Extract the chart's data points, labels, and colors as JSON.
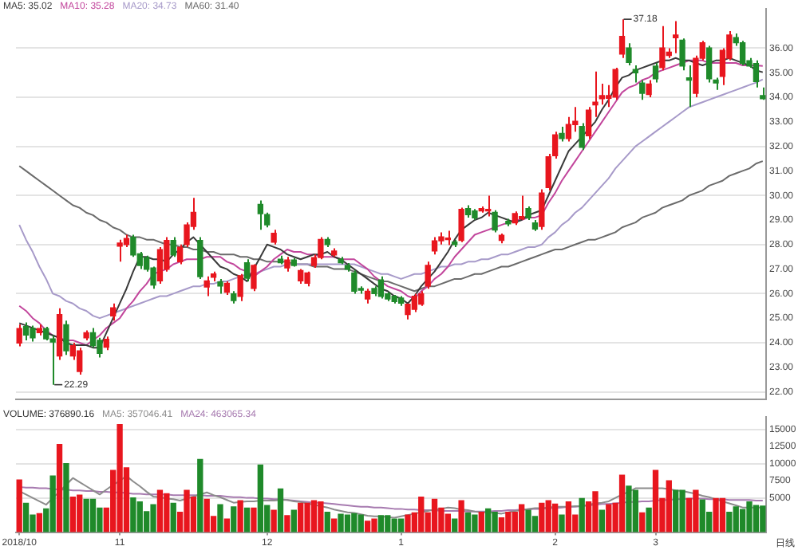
{
  "chart_data": [
    {
      "type": "candlestick",
      "categories": [
        null,
        null,
        null,
        null,
        null,
        null,
        null,
        null,
        null,
        null,
        null,
        null,
        null,
        null,
        null,
        null,
        null,
        null,
        null,
        null,
        null,
        null,
        null,
        null,
        null,
        null,
        null,
        null,
        null,
        null,
        null,
        null,
        null,
        null,
        null,
        null,
        null,
        null,
        null,
        null,
        null,
        null,
        null,
        null,
        null,
        null,
        null,
        null,
        null,
        null,
        null,
        null,
        null,
        null,
        null,
        null,
        null,
        null,
        null,
        null,
        null,
        null,
        null,
        null,
        null,
        null,
        null,
        null,
        null,
        null,
        null,
        null,
        null,
        null,
        null,
        null,
        null,
        null,
        null,
        null,
        null,
        null,
        null,
        null,
        null,
        null,
        null,
        null,
        null,
        null,
        null,
        null,
        null,
        null,
        null,
        null,
        null,
        null,
        null,
        null,
        null,
        null,
        null,
        null,
        null,
        null,
        null,
        null,
        null,
        null,
        null,
        null
      ],
      "ohlc": [
        [
          23.99,
          24.75,
          23.85,
          24.58
        ],
        [
          24.66,
          24.83,
          24.1,
          24.31
        ],
        [
          24.58,
          24.7,
          24.05,
          24.2
        ],
        [
          24.41,
          24.75,
          24.3,
          24.58
        ],
        [
          24.58,
          24.65,
          24.1,
          24.16
        ],
        [
          24.16,
          24.3,
          22.29,
          24.03
        ],
        [
          23.46,
          25.4,
          23.3,
          25.15
        ],
        [
          24.73,
          24.9,
          23.5,
          23.67
        ],
        [
          23.46,
          24.0,
          23.3,
          23.88
        ],
        [
          22.83,
          23.8,
          22.7,
          23.67
        ],
        [
          24.2,
          24.5,
          24.1,
          24.41
        ],
        [
          24.41,
          24.6,
          23.8,
          23.88
        ],
        [
          24.1,
          24.2,
          23.4,
          23.57
        ],
        [
          23.82,
          24.25,
          23.7,
          24.14
        ],
        [
          25.09,
          25.6,
          24.9,
          25.42
        ],
        [
          27.93,
          28.2,
          27.3,
          28.06
        ],
        [
          28.0,
          28.4,
          27.9,
          28.25
        ],
        [
          28.3,
          28.4,
          27.5,
          27.58
        ],
        [
          27.62,
          27.7,
          27.0,
          27.15
        ],
        [
          27.47,
          27.55,
          26.9,
          26.99
        ],
        [
          27.05,
          27.1,
          26.2,
          26.35
        ],
        [
          26.52,
          27.9,
          26.4,
          27.79
        ],
        [
          26.99,
          28.3,
          26.9,
          28.17
        ],
        [
          28.17,
          28.3,
          27.5,
          27.58
        ],
        [
          27.3,
          28.0,
          27.2,
          27.89
        ],
        [
          28.0,
          28.9,
          27.9,
          28.8
        ],
        [
          28.74,
          29.9,
          28.6,
          29.31
        ],
        [
          28.17,
          28.3,
          26.6,
          26.69
        ],
        [
          26.27,
          26.7,
          25.9,
          26.52
        ],
        [
          26.67,
          26.9,
          26.5,
          26.8
        ],
        [
          26.48,
          26.6,
          26.0,
          26.31
        ],
        [
          26.06,
          26.5,
          25.95,
          26.42
        ],
        [
          25.99,
          26.1,
          25.6,
          25.72
        ],
        [
          25.89,
          26.8,
          25.7,
          26.73
        ],
        [
          27.26,
          27.4,
          26.5,
          26.63
        ],
        [
          26.21,
          27.2,
          26.1,
          27.15
        ],
        [
          29.64,
          29.8,
          28.6,
          29.26
        ],
        [
          29.22,
          29.3,
          28.7,
          28.8
        ],
        [
          28.1,
          28.6,
          28.0,
          28.46
        ],
        [
          27.4,
          27.55,
          27.2,
          27.26
        ],
        [
          27.05,
          27.5,
          26.9,
          27.37
        ],
        [
          27.37,
          27.45,
          27.1,
          27.15
        ],
        [
          26.52,
          27.0,
          26.4,
          26.94
        ],
        [
          26.42,
          26.9,
          26.3,
          26.84
        ],
        [
          27.15,
          27.6,
          27.05,
          27.47
        ],
        [
          27.47,
          28.3,
          27.4,
          28.21
        ],
        [
          28.21,
          28.3,
          27.9,
          28.0
        ],
        [
          27.58,
          27.85,
          27.5,
          27.74
        ],
        [
          27.4,
          27.5,
          27.2,
          27.26
        ],
        [
          27.15,
          27.25,
          26.9,
          26.99
        ],
        [
          26.84,
          26.95,
          26.0,
          26.1
        ],
        [
          26.21,
          26.3,
          26.0,
          26.14
        ],
        [
          25.78,
          26.2,
          25.6,
          26.1
        ],
        [
          26.21,
          26.3,
          25.9,
          26.0
        ],
        [
          26.56,
          26.7,
          25.8,
          25.89
        ],
        [
          25.99,
          26.05,
          25.7,
          25.78
        ],
        [
          25.89,
          25.95,
          25.6,
          25.68
        ],
        [
          25.82,
          25.9,
          25.5,
          25.61
        ],
        [
          25.15,
          25.6,
          24.95,
          25.57
        ],
        [
          25.36,
          26.0,
          25.25,
          25.89
        ],
        [
          25.57,
          26.1,
          25.5,
          25.99
        ],
        [
          26.31,
          27.3,
          26.2,
          27.15
        ],
        [
          27.74,
          28.3,
          27.6,
          28.15
        ],
        [
          28.15,
          28.5,
          28.0,
          28.31
        ],
        [
          28.2,
          28.56,
          27.98,
          28.25
        ],
        [
          28.1,
          28.2,
          27.9,
          28.0
        ],
        [
          28.17,
          29.5,
          28.1,
          29.43
        ],
        [
          29.47,
          29.6,
          29.1,
          29.22
        ],
        [
          29.37,
          29.45,
          29.0,
          29.09
        ],
        [
          29.37,
          29.55,
          29.3,
          29.47
        ],
        [
          29.37,
          29.99,
          29.15,
          29.43
        ],
        [
          29.31,
          29.4,
          28.5,
          28.59
        ],
        [
          28.17,
          28.45,
          28.05,
          28.38
        ],
        [
          28.95,
          29.05,
          28.75,
          28.84
        ],
        [
          28.88,
          29.35,
          28.8,
          29.26
        ],
        [
          29.05,
          29.99,
          29.0,
          29.14
        ],
        [
          29.47,
          29.55,
          29.0,
          29.09
        ],
        [
          28.88,
          29.0,
          28.55,
          28.63
        ],
        [
          28.74,
          30.25,
          28.6,
          30.1
        ],
        [
          30.32,
          31.7,
          30.2,
          31.58
        ],
        [
          31.62,
          32.6,
          31.5,
          32.47
        ],
        [
          32.53,
          32.8,
          32.2,
          32.32
        ],
        [
          32.32,
          33.2,
          32.2,
          32.89
        ],
        [
          32.89,
          33.6,
          32.6,
          33.02
        ],
        [
          32.81,
          32.95,
          31.85,
          31.96
        ],
        [
          32.43,
          33.6,
          32.3,
          33.48
        ],
        [
          33.69,
          35.05,
          33.2,
          33.8
        ],
        [
          33.94,
          34.55,
          33.7,
          34.07
        ],
        [
          33.96,
          34.5,
          33.6,
          34.07
        ],
        [
          34.01,
          35.2,
          33.9,
          35.13
        ],
        [
          35.76,
          37.18,
          35.6,
          36.48
        ],
        [
          36.01,
          36.2,
          35.3,
          35.42
        ],
        [
          35.13,
          35.3,
          34.6,
          35.0
        ],
        [
          34.58,
          34.7,
          33.9,
          34.16
        ],
        [
          34.11,
          34.7,
          34.0,
          34.54
        ],
        [
          35.27,
          35.4,
          34.6,
          34.75
        ],
        [
          35.21,
          36.9,
          35.1,
          36.01
        ],
        [
          35.7,
          36.0,
          35.6,
          35.84
        ],
        [
          36.43,
          37.1,
          35.8,
          36.54
        ],
        [
          36.33,
          36.4,
          35.1,
          35.27
        ],
        [
          34.79,
          35.3,
          33.6,
          34.7
        ],
        [
          34.16,
          35.7,
          34.0,
          35.59
        ],
        [
          35.59,
          36.3,
          35.5,
          36.22
        ],
        [
          36.01,
          36.1,
          34.6,
          34.75
        ],
        [
          34.7,
          34.8,
          34.3,
          34.58
        ],
        [
          34.85,
          36.0,
          34.5,
          35.91
        ],
        [
          35.59,
          36.7,
          35.5,
          36.54
        ],
        [
          36.43,
          36.6,
          36.1,
          36.22
        ],
        [
          36.22,
          36.3,
          35.3,
          35.38
        ],
        [
          35.49,
          35.6,
          35.2,
          35.27
        ],
        [
          35.38,
          35.5,
          34.4,
          34.64
        ],
        [
          34.07,
          34.4,
          33.9,
          33.94
        ]
      ],
      "colors": [
        "#e8161e",
        "#1f8a2a",
        "#1f8a2a",
        "#e8161e",
        "#1f8a2a",
        "#1f8a2a",
        "#e8161e",
        "#1f8a2a",
        "#e8161e",
        "#e8161e",
        "#e8161e",
        "#1f8a2a",
        "#1f8a2a",
        "#e8161e",
        "#e8161e",
        "#e8161e",
        "#e8161e",
        "#1f8a2a",
        "#1f8a2a",
        "#1f8a2a",
        "#1f8a2a",
        "#e8161e",
        "#e8161e",
        "#1f8a2a",
        "#e8161e",
        "#e8161e",
        "#e8161e",
        "#1f8a2a",
        "#e8161e",
        "#e8161e",
        "#1f8a2a",
        "#e8161e",
        "#1f8a2a",
        "#e8161e",
        "#1f8a2a",
        "#e8161e",
        "#1f8a2a",
        "#1f8a2a",
        "#e8161e",
        "#1f8a2a",
        "#e8161e",
        "#1f8a2a",
        "#e8161e",
        "#e8161e",
        "#e8161e",
        "#e8161e",
        "#1f8a2a",
        "#e8161e",
        "#1f8a2a",
        "#1f8a2a",
        "#1f8a2a",
        "#1f8a2a",
        "#e8161e",
        "#1f8a2a",
        "#1f8a2a",
        "#1f8a2a",
        "#1f8a2a",
        "#1f8a2a",
        "#e8161e",
        "#e8161e",
        "#e8161e",
        "#e8161e",
        "#e8161e",
        "#e8161e",
        "#e8161e",
        "#1f8a2a",
        "#e8161e",
        "#1f8a2a",
        "#1f8a2a",
        "#e8161e",
        "#e8161e",
        "#1f8a2a",
        "#e8161e",
        "#1f8a2a",
        "#e8161e",
        "#e8161e",
        "#1f8a2a",
        "#1f8a2a",
        "#e8161e",
        "#e8161e",
        "#e8161e",
        "#1f8a2a",
        "#e8161e",
        "#e8161e",
        "#1f8a2a",
        "#e8161e",
        "#e8161e",
        "#e8161e",
        "#e8161e",
        "#e8161e",
        "#e8161e",
        "#1f8a2a",
        "#1f8a2a",
        "#1f8a2a",
        "#e8161e",
        "#1f8a2a",
        "#e8161e",
        "#e8161e",
        "#e8161e",
        "#1f8a2a",
        "#1f8a2a",
        "#e8161e",
        "#e8161e",
        "#1f8a2a",
        "#1f8a2a",
        "#e8161e",
        "#e8161e",
        "#1f8a2a",
        "#1f8a2a",
        "#1f8a2a",
        "#1f8a2a",
        "#1f8a2a"
      ],
      "series": [
        {
          "name": "MA5: 35.02",
          "type": "line",
          "color": "#3a3a3a",
          "values": [
            24.8,
            24.7,
            24.6,
            24.5,
            24.4,
            24.3,
            24.2,
            24.0,
            23.9,
            23.9,
            23.9,
            23.8,
            23.8,
            24.4,
            25.0,
            25.6,
            26.2,
            26.9,
            27.5,
            27.5,
            27.4,
            27.4,
            27.3,
            27.6,
            27.8,
            28.1,
            28.3,
            28.0,
            27.7,
            27.4,
            27.1,
            27.0,
            26.8,
            26.7,
            26.5,
            27.0,
            27.5,
            28.0,
            27.9,
            27.8,
            27.6,
            27.5,
            27.4,
            27.5,
            27.6,
            27.6,
            27.7,
            27.5,
            27.4,
            27.2,
            27.0,
            26.8,
            26.6,
            26.4,
            26.2,
            26.1,
            25.9,
            25.8,
            25.6,
            25.9,
            26.3,
            26.6,
            26.9,
            27.3,
            27.7,
            28.2,
            28.6,
            28.8,
            29.0,
            29.1,
            29.3,
            29.2,
            29.1,
            29.0,
            28.9,
            29.0,
            29.2,
            29.3,
            29.4,
            30.0,
            30.6,
            31.2,
            31.8,
            32.1,
            32.4,
            32.7,
            33.0,
            33.5,
            33.9,
            34.4,
            34.8,
            34.9,
            35.1,
            35.2,
            35.3,
            35.4,
            35.5,
            35.5,
            35.6,
            35.5,
            35.5,
            35.4,
            35.3,
            35.4,
            35.5,
            35.5,
            35.6,
            35.5,
            35.4,
            35.3,
            35.1,
            35.02
          ]
        },
        {
          "name": "MA10: 35.28",
          "type": "line",
          "color": "#c2469c",
          "values": [
            25.5,
            25.3,
            25.0,
            24.8,
            24.5,
            24.3,
            24.2,
            24.1,
            24.1,
            24.0,
            23.9,
            24.1,
            24.3,
            24.6,
            24.8,
            25.0,
            25.4,
            25.7,
            26.1,
            26.4,
            26.8,
            26.9,
            27.0,
            27.2,
            27.3,
            27.4,
            27.4,
            27.4,
            27.5,
            27.5,
            27.5,
            27.3,
            27.2,
            27.0,
            26.9,
            26.7,
            26.9,
            27.1,
            27.4,
            27.6,
            27.8,
            27.7,
            27.7,
            27.6,
            27.6,
            27.5,
            27.5,
            27.5,
            27.4,
            27.4,
            27.4,
            27.2,
            27.0,
            26.7,
            26.5,
            26.3,
            26.2,
            26.1,
            25.9,
            25.8,
            26.1,
            26.3,
            26.6,
            26.8,
            27.1,
            27.5,
            27.8,
            28.1,
            28.4,
            28.5,
            28.6,
            28.7,
            28.8,
            28.9,
            29.0,
            29.0,
            29.1,
            29.1,
            29.2,
            29.7,
            30.1,
            30.6,
            31.0,
            31.4,
            31.8,
            32.2,
            32.6,
            33.0,
            33.4,
            33.8,
            34.2,
            34.4,
            34.5,
            34.7,
            34.8,
            35.0,
            35.1,
            35.2,
            35.3,
            35.4,
            35.5,
            35.5,
            35.5,
            35.4,
            35.4,
            35.4,
            35.4,
            35.4,
            35.3,
            35.3,
            35.3,
            35.28
          ]
        },
        {
          "name": "MA20: 34.73",
          "type": "line",
          "color": "#a79ac9",
          "values": [
            28.8,
            28.2,
            27.7,
            27.1,
            26.6,
            26.0,
            25.9,
            25.7,
            25.6,
            25.4,
            25.3,
            25.1,
            25.0,
            25.1,
            25.2,
            25.3,
            25.4,
            25.5,
            25.6,
            25.7,
            25.8,
            25.9,
            25.9,
            26.0,
            26.1,
            26.2,
            26.3,
            26.3,
            26.4,
            26.4,
            26.5,
            26.5,
            26.6,
            26.7,
            26.8,
            26.8,
            26.9,
            27.0,
            27.1,
            27.1,
            27.2,
            27.2,
            27.2,
            27.2,
            27.2,
            27.2,
            27.2,
            27.2,
            27.2,
            27.2,
            27.2,
            27.1,
            27.0,
            26.9,
            26.8,
            26.8,
            26.7,
            26.6,
            26.7,
            26.8,
            26.8,
            26.9,
            27.0,
            27.1,
            27.1,
            27.2,
            27.2,
            27.3,
            27.3,
            27.4,
            27.4,
            27.5,
            27.6,
            27.6,
            27.7,
            27.8,
            27.9,
            27.9,
            28.0,
            28.3,
            28.5,
            28.8,
            29.0,
            29.3,
            29.5,
            29.8,
            30.1,
            30.4,
            30.7,
            31.1,
            31.4,
            31.7,
            32.0,
            32.2,
            32.4,
            32.6,
            32.8,
            33.0,
            33.2,
            33.4,
            33.6,
            33.7,
            33.8,
            33.9,
            34.0,
            34.1,
            34.2,
            34.3,
            34.4,
            34.5,
            34.6,
            34.73
          ]
        },
        {
          "name": "MA60: 31.40",
          "type": "line",
          "color": "#6b6b6b",
          "values": [
            31.2,
            31.0,
            30.8,
            30.6,
            30.4,
            30.2,
            30.0,
            29.8,
            29.6,
            29.5,
            29.3,
            29.2,
            29.0,
            28.9,
            28.7,
            28.6,
            28.4,
            28.3,
            28.3,
            28.2,
            28.2,
            28.1,
            28.0,
            28.0,
            27.9,
            27.9,
            27.8,
            27.8,
            27.7,
            27.7,
            27.6,
            27.6,
            27.6,
            27.5,
            27.5,
            27.4,
            27.4,
            27.3,
            27.3,
            27.3,
            27.3,
            27.2,
            27.2,
            27.2,
            27.1,
            27.1,
            27.1,
            27.0,
            27.0,
            27.0,
            26.9,
            26.8,
            26.7,
            26.6,
            26.5,
            26.5,
            26.4,
            26.3,
            26.2,
            26.1,
            26.2,
            26.3,
            26.3,
            26.4,
            26.5,
            26.6,
            26.6,
            26.7,
            26.8,
            26.8,
            26.9,
            27.0,
            27.1,
            27.1,
            27.2,
            27.3,
            27.4,
            27.5,
            27.6,
            27.7,
            27.8,
            27.8,
            27.9,
            28.0,
            28.1,
            28.2,
            28.2,
            28.3,
            28.4,
            28.5,
            28.7,
            28.8,
            28.9,
            29.1,
            29.2,
            29.3,
            29.5,
            29.6,
            29.7,
            29.8,
            30.0,
            30.1,
            30.2,
            30.4,
            30.5,
            30.6,
            30.8,
            30.9,
            31.0,
            31.1,
            31.3,
            31.4
          ]
        }
      ],
      "ylim": [
        21.7,
        37.6
      ],
      "yticks": [
        {
          "value": 22,
          "label": "22.00"
        },
        {
          "value": 23,
          "label": "23.00"
        },
        {
          "value": 24,
          "label": "24.00"
        },
        {
          "value": 25,
          "label": "25.00"
        },
        {
          "value": 26,
          "label": "26.00"
        },
        {
          "value": 27,
          "label": "27.00"
        },
        {
          "value": 28,
          "label": "28.00"
        },
        {
          "value": 29,
          "label": "29.00"
        },
        {
          "value": 30,
          "label": "30.00"
        },
        {
          "value": 31,
          "label": "31.00"
        },
        {
          "value": 32,
          "label": "32.00"
        },
        {
          "value": 33,
          "label": "33.00"
        },
        {
          "value": 34,
          "label": "34.00"
        },
        {
          "value": 35,
          "label": "35.00"
        },
        {
          "value": 36,
          "label": "36.00"
        }
      ],
      "tick_labels": "y",
      "grid": "y",
      "legend": "top left",
      "annotations": [
        "37.18",
        "22.29"
      ]
    },
    {
      "type": "bar",
      "categories": [
        "2018/10",
        null,
        null,
        null,
        null,
        null,
        null,
        null,
        null,
        null,
        null,
        null,
        null,
        null,
        null,
        "11",
        null,
        null,
        null,
        null,
        null,
        null,
        null,
        null,
        null,
        null,
        null,
        null,
        null,
        null,
        null,
        null,
        null,
        null,
        null,
        null,
        null,
        "12",
        null,
        null,
        null,
        null,
        null,
        null,
        null,
        null,
        null,
        null,
        null,
        null,
        null,
        null,
        null,
        null,
        null,
        null,
        null,
        "1",
        null,
        null,
        null,
        null,
        null,
        null,
        null,
        null,
        null,
        null,
        null,
        null,
        null,
        null,
        null,
        null,
        null,
        null,
        null,
        null,
        null,
        null,
        "2",
        null,
        null,
        null,
        null,
        null,
        null,
        null,
        null,
        null,
        null,
        null,
        null,
        null,
        null,
        "3",
        null,
        null,
        null,
        null,
        null,
        null,
        null,
        null,
        null,
        null,
        null,
        null,
        null,
        null,
        null,
        null
      ],
      "series": [
        {
          "name": "VOLUME: 376890.16",
          "type": "bar",
          "values": [
            7600,
            4200,
            2500,
            2700,
            3400,
            8200,
            12800,
            10000,
            5100,
            5400,
            4800,
            4800,
            3500,
            3500,
            9000,
            15700,
            9400,
            5000,
            4400,
            3000,
            4000,
            6100,
            5600,
            4200,
            2900,
            6100,
            5100,
            10600,
            4800,
            2300,
            4000,
            1900,
            3700,
            4600,
            3500,
            3500,
            9800,
            3900,
            3200,
            6300,
            2400,
            3200,
            4200,
            4200,
            4600,
            4400,
            2900,
            1900,
            2600,
            2500,
            2700,
            2500,
            1600,
            1900,
            2400,
            2400,
            1900,
            1900,
            2500,
            2800,
            5100,
            2800,
            4800,
            3500,
            2600,
            1900,
            4600,
            2800,
            2500,
            2900,
            3400,
            2900,
            2100,
            2900,
            2900,
            4000,
            3200,
            2300,
            4200,
            4600,
            4100,
            2500,
            4400,
            2500,
            4900,
            4400,
            5900,
            3200,
            4000,
            4200,
            8300,
            6700,
            6100,
            2800,
            3500,
            9000,
            4900,
            7500,
            6100,
            6100,
            4900,
            6100,
            4700,
            2900,
            4900,
            4900,
            2900,
            3700,
            3300,
            4400,
            3900,
            3800
          ],
          "colors": [
            "#e8161e",
            "#1f8a2a",
            "#1f8a2a",
            "#e8161e",
            "#1f8a2a",
            "#1f8a2a",
            "#e8161e",
            "#1f8a2a",
            "#e8161e",
            "#e8161e",
            "#1f8a2a",
            "#1f8a2a",
            "#1f8a2a",
            "#e8161e",
            "#e8161e",
            "#e8161e",
            "#e8161e",
            "#1f8a2a",
            "#1f8a2a",
            "#1f8a2a",
            "#1f8a2a",
            "#e8161e",
            "#e8161e",
            "#1f8a2a",
            "#e8161e",
            "#e8161e",
            "#e8161e",
            "#1f8a2a",
            "#e8161e",
            "#e8161e",
            "#1f8a2a",
            "#e8161e",
            "#1f8a2a",
            "#e8161e",
            "#1f8a2a",
            "#e8161e",
            "#1f8a2a",
            "#1f8a2a",
            "#e8161e",
            "#1f8a2a",
            "#e8161e",
            "#1f8a2a",
            "#e8161e",
            "#e8161e",
            "#e8161e",
            "#e8161e",
            "#1f8a2a",
            "#e8161e",
            "#1f8a2a",
            "#1f8a2a",
            "#1f8a2a",
            "#1f8a2a",
            "#e8161e",
            "#e8161e",
            "#1f8a2a",
            "#1f8a2a",
            "#1f8a2a",
            "#1f8a2a",
            "#e8161e",
            "#e8161e",
            "#e8161e",
            "#e8161e",
            "#e8161e",
            "#e8161e",
            "#e8161e",
            "#1f8a2a",
            "#e8161e",
            "#1f8a2a",
            "#1f8a2a",
            "#e8161e",
            "#1f8a2a",
            "#1f8a2a",
            "#e8161e",
            "#e8161e",
            "#e8161e",
            "#e8161e",
            "#1f8a2a",
            "#1f8a2a",
            "#e8161e",
            "#e8161e",
            "#e8161e",
            "#1f8a2a",
            "#e8161e",
            "#e8161e",
            "#1f8a2a",
            "#e8161e",
            "#e8161e",
            "#1f8a2a",
            "#e8161e",
            "#e8161e",
            "#e8161e",
            "#1f8a2a",
            "#1f8a2a",
            "#e8161e",
            "#1f8a2a",
            "#e8161e",
            "#e8161e",
            "#e8161e",
            "#1f8a2a",
            "#1f8a2a",
            "#e8161e",
            "#e8161e",
            "#1f8a2a",
            "#1f8a2a",
            "#e8161e",
            "#e8161e",
            "#1f8a2a",
            "#1f8a2a",
            "#1f8a2a",
            "#1f8a2a",
            "#1f8a2a",
            "#1f8a2a"
          ]
        },
        {
          "name": "MA5: 357046.41",
          "type": "line",
          "color": "#8c8c8c",
          "values": [
            6000,
            5500,
            5000,
            4500,
            4000,
            5000,
            5900,
            6900,
            7900,
            7300,
            6700,
            6100,
            5500,
            6200,
            6900,
            7500,
            8200,
            7400,
            6700,
            5900,
            5200,
            5100,
            4900,
            4800,
            4600,
            4900,
            5200,
            5500,
            5800,
            5400,
            5100,
            4700,
            4300,
            4400,
            4500,
            4500,
            4600,
            4600,
            4600,
            4700,
            4700,
            4500,
            4400,
            4200,
            4000,
            3800,
            3600,
            3300,
            3100,
            2900,
            2800,
            2600,
            2400,
            2300,
            2300,
            2200,
            2100,
            2300,
            2500,
            2700,
            2900,
            3100,
            3300,
            3400,
            3600,
            3500,
            3300,
            3200,
            3000,
            2900,
            2900,
            2800,
            2700,
            2900,
            3100,
            3200,
            3400,
            3500,
            3500,
            3600,
            3700,
            3700,
            3700,
            3800,
            3800,
            4000,
            4200,
            4300,
            4500,
            5000,
            5500,
            5900,
            6400,
            6400,
            6400,
            6400,
            6400,
            6300,
            6100,
            6000,
            5800,
            5600,
            5300,
            5100,
            4800,
            4500,
            4200,
            3900,
            3600,
            3600,
            3600,
            3600
          ]
        },
        {
          "name": "MA24: 463065.34",
          "type": "line",
          "color": "#a77bb0",
          "values": [
            6600,
            6500,
            6500,
            6400,
            6400,
            6300,
            6200,
            6200,
            6100,
            6100,
            6000,
            6000,
            5900,
            5900,
            5800,
            5800,
            5700,
            5600,
            5600,
            5500,
            5500,
            5500,
            5500,
            5400,
            5400,
            5400,
            5400,
            5400,
            5300,
            5300,
            5300,
            5200,
            5100,
            5100,
            5000,
            5000,
            4900,
            4900,
            4800,
            4800,
            4700,
            4600,
            4500,
            4400,
            4300,
            4300,
            4200,
            4100,
            4000,
            3900,
            3800,
            3700,
            3700,
            3600,
            3600,
            3500,
            3400,
            3400,
            3300,
            3300,
            3200,
            3200,
            3200,
            3100,
            3100,
            3100,
            3100,
            3000,
            3000,
            3000,
            3000,
            3100,
            3100,
            3200,
            3200,
            3300,
            3300,
            3400,
            3400,
            3500,
            3500,
            3600,
            3700,
            3700,
            3800,
            3900,
            4000,
            4100,
            4100,
            4200,
            4300,
            4400,
            4400,
            4500,
            4500,
            4600,
            4700,
            4700,
            4800,
            4800,
            4900,
            4900,
            4900,
            4800,
            4800,
            4800,
            4700,
            4700,
            4700,
            4700,
            4600,
            4600
          ]
        }
      ],
      "ylim": [
        0,
        16800
      ],
      "yticks": [
        5000,
        7500,
        10000,
        12500,
        15000
      ],
      "grid": "y",
      "legend": "top left",
      "annotations": [
        "日线"
      ]
    }
  ]
}
